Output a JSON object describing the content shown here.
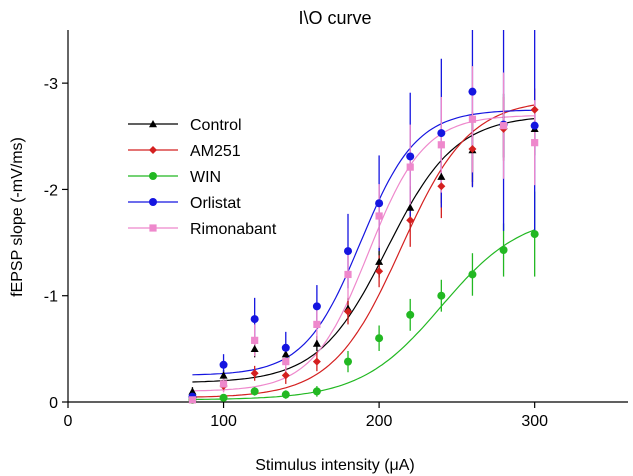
{
  "chart_data": {
    "type": "scatter",
    "title": "I\\O curve",
    "xlabel": "Stimulus intensity (μA)",
    "ylabel": "fEPSP slope (-mV/ms)",
    "xlim": [
      0,
      360
    ],
    "ylim": [
      0,
      -3.5
    ],
    "xticks": [
      0,
      100,
      200,
      300
    ],
    "xtick_labels": [
      "0",
      "100",
      "200",
      "300"
    ],
    "yticks": [
      0,
      -1,
      -2,
      -3
    ],
    "ytick_labels": [
      "0",
      "-1",
      "-2",
      "-3"
    ],
    "grid": false,
    "legend_position": "left",
    "x": [
      80,
      100,
      120,
      140,
      160,
      180,
      200,
      220,
      240,
      260,
      280,
      300
    ],
    "series": [
      {
        "name": "Control",
        "color": "#000000",
        "marker": "triangle",
        "values": [
          -0.1,
          -0.25,
          -0.5,
          -0.45,
          -0.55,
          -0.88,
          -1.32,
          -1.83,
          -2.12,
          -2.37,
          -2.6,
          -2.57
        ],
        "errors": [
          0.04,
          0.05,
          0.08,
          0.07,
          0.07,
          0.1,
          0.15,
          0.2,
          0.25,
          0.3,
          0.3,
          0.25
        ],
        "fit": {
          "base": -0.18,
          "top": -2.7,
          "x50": 205,
          "slope": 22
        }
      },
      {
        "name": "AM251",
        "color": "#d42020",
        "marker": "diamond",
        "values": [
          -0.04,
          -0.15,
          -0.27,
          -0.25,
          -0.38,
          -0.85,
          -1.23,
          -1.71,
          -2.03,
          -2.38,
          -2.57,
          -2.75
        ],
        "errors": [
          0.03,
          0.05,
          0.07,
          0.08,
          0.09,
          0.12,
          0.15,
          0.25,
          0.3,
          0.35,
          0.3,
          0.2
        ],
        "fit": {
          "base": -0.04,
          "top": -2.85,
          "x50": 214,
          "slope": 22
        }
      },
      {
        "name": "WIN",
        "color": "#22b822",
        "marker": "circle",
        "values": [
          -0.02,
          -0.04,
          -0.1,
          -0.07,
          -0.1,
          -0.38,
          -0.6,
          -0.82,
          -1.0,
          -1.2,
          -1.43,
          -1.58
        ],
        "errors": [
          0.02,
          0.03,
          0.04,
          0.04,
          0.05,
          0.1,
          0.12,
          0.15,
          0.15,
          0.2,
          0.25,
          0.4
        ],
        "fit": {
          "base": -0.02,
          "top": -1.78,
          "x50": 240,
          "slope": 26
        }
      },
      {
        "name": "Orlistat",
        "color": "#1515e0",
        "marker": "circle",
        "values": [
          -0.05,
          -0.35,
          -0.78,
          -0.51,
          -0.9,
          -1.42,
          -1.87,
          -2.31,
          -2.53,
          -2.92,
          -2.61,
          -2.6
        ],
        "errors": [
          0.05,
          0.1,
          0.2,
          0.15,
          0.2,
          0.35,
          0.45,
          0.6,
          0.7,
          0.9,
          1.0,
          1.0
        ],
        "fit": {
          "base": -0.25,
          "top": -2.75,
          "x50": 188,
          "slope": 18
        }
      },
      {
        "name": "Rimonabant",
        "color": "#ee88cc",
        "marker": "square",
        "values": [
          -0.02,
          -0.17,
          -0.58,
          -0.38,
          -0.73,
          -1.2,
          -1.75,
          -2.21,
          -2.42,
          -2.66,
          -2.6,
          -2.44
        ],
        "errors": [
          0.03,
          0.08,
          0.15,
          0.12,
          0.15,
          0.25,
          0.3,
          0.4,
          0.45,
          0.5,
          0.5,
          0.4
        ],
        "fit": {
          "base": -0.1,
          "top": -2.7,
          "x50": 193,
          "slope": 18
        }
      }
    ]
  }
}
